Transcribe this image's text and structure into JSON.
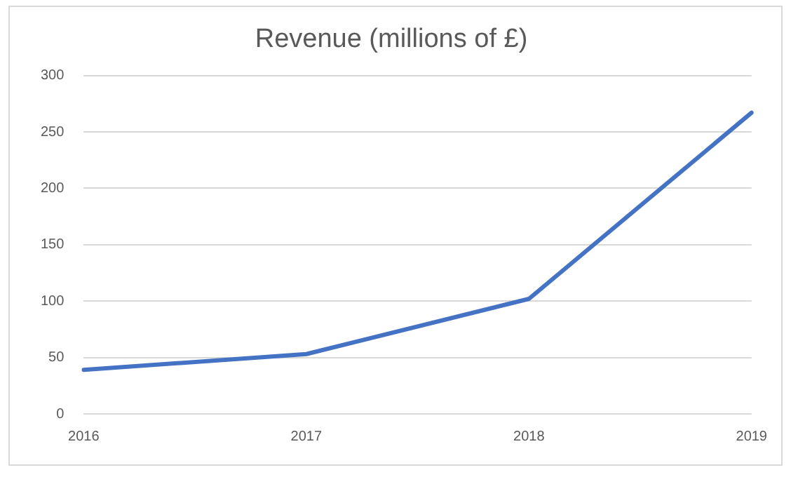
{
  "chart_data": {
    "type": "line",
    "title": "Revenue (millions of £)",
    "categories": [
      "2016",
      "2017",
      "2018",
      "2019"
    ],
    "series": [
      {
        "color": "#4472c4",
        "values": [
          39,
          53,
          102,
          267
        ]
      }
    ],
    "ylim": [
      0,
      300
    ],
    "yticks": [
      0,
      50,
      100,
      150,
      200,
      250,
      300
    ],
    "grid": "y",
    "legend": false,
    "marker": "none",
    "line_style": "solid"
  }
}
